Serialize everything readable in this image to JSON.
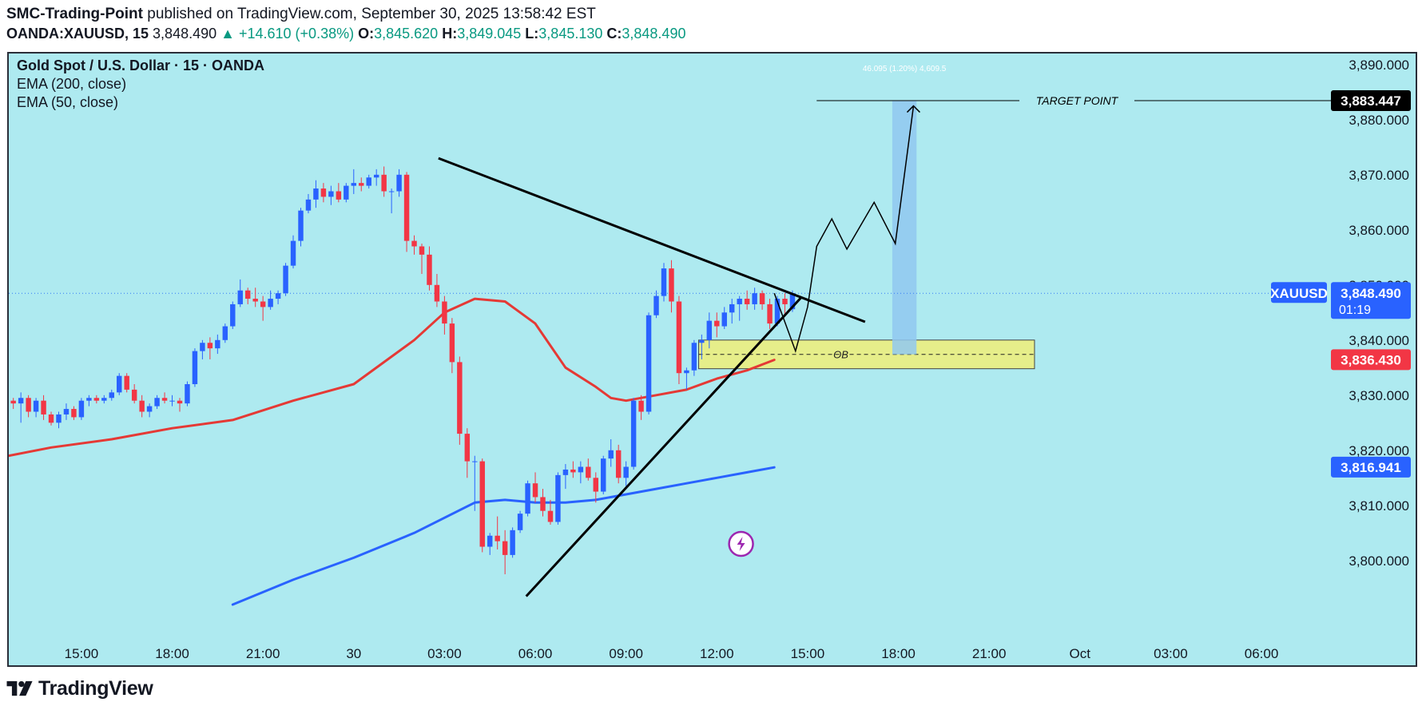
{
  "header": {
    "publisher": "SMC-Trading-Point",
    "published_text": "published on TradingView.com, September 30, 2025 13:58:42 EST",
    "symbol": "OANDA:XAUUSD, 15",
    "last": "3,848.490",
    "change": "+14.610 (+0.38%)",
    "o_label": "O:",
    "o": "3,845.620",
    "h_label": "H:",
    "h": "3,849.045",
    "l_label": "L:",
    "l": "3,845.130",
    "c_label": "C:",
    "c": "3,848.490"
  },
  "legend": {
    "title": "Gold Spot / U.S. Dollar · 15 · OANDA",
    "ema200": "EMA (200, close)",
    "ema50": "EMA (50, close)"
  },
  "colors": {
    "background": "#aeeaf0",
    "up": "#2962ff",
    "down": "#f23645",
    "ema50": "#e53935",
    "ema200": "#2962ff",
    "ob_fill": "#e6ee8a",
    "target_box": "#90c8f0",
    "badge_price": "#2962ff",
    "badge_ema50": "#f23645",
    "badge_ema200": "#2962ff",
    "badge_target": "#000000"
  },
  "annotations": {
    "target_label": "TARGET POINT",
    "target_value": "3,883.447",
    "measure_text": "46.095 (1.20%) 4,609.5",
    "ob_label": "OB",
    "symbol_badge": "XAUUSD",
    "price_badge": "3,848.490",
    "countdown": "01:19",
    "ema50_badge": "3,836.430",
    "ema200_badge": "3,816.941",
    "lightning_icon": "lightning-icon"
  },
  "footer": {
    "brand": "TradingView"
  },
  "chart_data": {
    "type": "candlestick",
    "y_ticks": [
      "3,800.000",
      "3,810.000",
      "3,820.000",
      "3,830.000",
      "3,840.000",
      "3,850.000",
      "3,860.000",
      "3,870.000",
      "3,880.000",
      "3,890.000"
    ],
    "y_tick_values": [
      3800,
      3810,
      3820,
      3830,
      3840,
      3850,
      3860,
      3870,
      3880,
      3890
    ],
    "x_ticks": [
      "15:00",
      "18:00",
      "21:00",
      "30",
      "03:00",
      "06:00",
      "09:00",
      "12:00",
      "15:00",
      "18:00",
      "21:00",
      "Oct",
      "03:00",
      "06:00"
    ],
    "x_tick_hours": [
      15,
      18,
      21,
      24,
      27,
      30,
      33,
      36,
      39,
      42,
      45,
      48,
      51,
      54
    ],
    "ylim": [
      3792,
      3892
    ],
    "xlim": [
      12.6,
      55.9
    ],
    "candles_time_start": 12.75,
    "candle_interval_hours": 0.25,
    "candles": [
      [
        3829,
        3829.5,
        3827.5,
        3828.5
      ],
      [
        3828.5,
        3830.5,
        3825,
        3829.5
      ],
      [
        3829.5,
        3830,
        3826,
        3827
      ],
      [
        3827,
        3829.5,
        3826,
        3829
      ],
      [
        3829,
        3830,
        3825.5,
        3826.5
      ],
      [
        3826.5,
        3827,
        3824.5,
        3825
      ],
      [
        3825,
        3827,
        3824,
        3826.5
      ],
      [
        3826.5,
        3828.5,
        3825.5,
        3827.5
      ],
      [
        3827.5,
        3828,
        3825.5,
        3826
      ],
      [
        3826,
        3829.5,
        3825.5,
        3829
      ],
      [
        3829,
        3830,
        3828,
        3829.5
      ],
      [
        3829.5,
        3830,
        3828.5,
        3829
      ],
      [
        3829,
        3830,
        3828.5,
        3829.5
      ],
      [
        3829.5,
        3831,
        3829,
        3830.5
      ],
      [
        3830.5,
        3834,
        3830,
        3833.5
      ],
      [
        3833.5,
        3834,
        3830.5,
        3831
      ],
      [
        3831,
        3832,
        3828.5,
        3829
      ],
      [
        3829,
        3830,
        3826,
        3827
      ],
      [
        3827,
        3828.5,
        3826,
        3828
      ],
      [
        3828,
        3830,
        3827.5,
        3829.5
      ],
      [
        3829.5,
        3830.5,
        3828.5,
        3829
      ],
      [
        3829,
        3830,
        3828,
        3829
      ],
      [
        3829,
        3829.5,
        3827,
        3828.5
      ],
      [
        3828.5,
        3832.5,
        3828,
        3832
      ],
      [
        3832,
        3838.5,
        3831.5,
        3838
      ],
      [
        3838,
        3840,
        3836.5,
        3839.5
      ],
      [
        3839.5,
        3840.5,
        3836.5,
        3838.5
      ],
      [
        3838.5,
        3841,
        3837.5,
        3840
      ],
      [
        3840,
        3843,
        3839.5,
        3842.5
      ],
      [
        3842.5,
        3847,
        3842,
        3846.5
      ],
      [
        3846.5,
        3851,
        3846,
        3849
      ],
      [
        3849,
        3849.5,
        3846.5,
        3847.5
      ],
      [
        3847.5,
        3849.5,
        3846,
        3847
      ],
      [
        3847,
        3848,
        3843.5,
        3846
      ],
      [
        3846,
        3849,
        3845.5,
        3847.5
      ],
      [
        3847.5,
        3849,
        3846.5,
        3848.5
      ],
      [
        3848.5,
        3854,
        3848,
        3853.5
      ],
      [
        3853.5,
        3859,
        3853,
        3858
      ],
      [
        3858,
        3864,
        3857,
        3863.5
      ],
      [
        3863.5,
        3866.5,
        3863,
        3865.5
      ],
      [
        3865.5,
        3869,
        3864,
        3867.5
      ],
      [
        3867.5,
        3868.5,
        3865,
        3866
      ],
      [
        3866,
        3868,
        3864.5,
        3867
      ],
      [
        3867,
        3868.5,
        3865,
        3865.5
      ],
      [
        3865.5,
        3868.5,
        3865,
        3868
      ],
      [
        3868,
        3871,
        3866.5,
        3868.5
      ],
      [
        3868.5,
        3869.5,
        3867,
        3868
      ],
      [
        3868,
        3870,
        3867.5,
        3869.5
      ],
      [
        3869.5,
        3871,
        3868,
        3870
      ],
      [
        3870,
        3871.5,
        3866,
        3867
      ],
      [
        3867,
        3867.5,
        3863,
        3867
      ],
      [
        3867,
        3871,
        3866,
        3870
      ],
      [
        3870,
        3870.5,
        3856,
        3858
      ],
      [
        3858,
        3859,
        3855.5,
        3857
      ],
      [
        3857,
        3857.5,
        3852,
        3855.5
      ],
      [
        3855.5,
        3857,
        3849,
        3850
      ],
      [
        3850,
        3852,
        3846,
        3847
      ],
      [
        3847,
        3848,
        3841,
        3843
      ],
      [
        3843,
        3844,
        3834,
        3836
      ],
      [
        3836,
        3837,
        3821,
        3823
      ],
      [
        3823,
        3824,
        3815,
        3818
      ],
      [
        3818,
        3819,
        3809,
        3818
      ],
      [
        3818,
        3818.5,
        3801.5,
        3802.5
      ],
      [
        3802.5,
        3805,
        3801,
        3804.5
      ],
      [
        3804.5,
        3808,
        3802,
        3803.5
      ],
      [
        3803.5,
        3805.5,
        3797.5,
        3801
      ],
      [
        3801,
        3806,
        3800.5,
        3805.5
      ],
      [
        3805.5,
        3809,
        3805,
        3808.5
      ],
      [
        3808.5,
        3814.5,
        3808,
        3814
      ],
      [
        3814,
        3816,
        3810.5,
        3811.5
      ],
      [
        3811.5,
        3813,
        3808,
        3809
      ],
      [
        3809,
        3811,
        3806.5,
        3807
      ],
      [
        3807,
        3816,
        3806.5,
        3815.5
      ],
      [
        3815.5,
        3817.5,
        3813,
        3816.5
      ],
      [
        3816.5,
        3818,
        3815,
        3816
      ],
      [
        3816,
        3818,
        3814,
        3817
      ],
      [
        3817,
        3818.5,
        3814.5,
        3815
      ],
      [
        3815,
        3816,
        3810.5,
        3812.5
      ],
      [
        3812.5,
        3819,
        3812,
        3818.5
      ],
      [
        3818.5,
        3822,
        3817,
        3820
      ],
      [
        3820,
        3821,
        3814,
        3815
      ],
      [
        3815,
        3818,
        3813.5,
        3817
      ],
      [
        3817,
        3829.5,
        3816.5,
        3829
      ],
      [
        3829,
        3830,
        3825.5,
        3827
      ],
      [
        3827,
        3845,
        3826.5,
        3844.5
      ],
      [
        3844.5,
        3849,
        3844,
        3848
      ],
      [
        3848,
        3854,
        3847,
        3853
      ],
      [
        3853,
        3854.5,
        3845,
        3847
      ],
      [
        3847,
        3848,
        3832,
        3834
      ],
      [
        3834,
        3835,
        3831,
        3834.5
      ],
      [
        3834.5,
        3840,
        3833.5,
        3839.5
      ],
      [
        3839.5,
        3841,
        3836.5,
        3840
      ],
      [
        3840,
        3845,
        3838.5,
        3843.5
      ],
      [
        3843.5,
        3845,
        3840.5,
        3842.5
      ],
      [
        3842.5,
        3846,
        3842,
        3845
      ],
      [
        3845,
        3847.5,
        3843,
        3846.5
      ],
      [
        3846.5,
        3848,
        3843.5,
        3847.5
      ],
      [
        3847.5,
        3849,
        3845.5,
        3846.5
      ],
      [
        3846.5,
        3849.5,
        3845.5,
        3848.5
      ],
      [
        3848.5,
        3849,
        3845.5,
        3846.5
      ],
      [
        3846.5,
        3847.5,
        3842,
        3843
      ],
      [
        3843,
        3848,
        3842.5,
        3847.5
      ],
      [
        3847.5,
        3848.5,
        3844.5,
        3846.5
      ],
      [
        3845.6,
        3849.0,
        3845.1,
        3848.5
      ]
    ],
    "series": [
      {
        "name": "EMA (50, close)",
        "x": [
          12.6,
          14,
          16,
          18,
          20,
          22,
          24,
          25,
          26,
          27,
          28,
          29,
          30,
          31,
          32,
          32.5,
          33,
          34,
          35,
          36,
          37,
          37.9
        ],
        "y": [
          3819,
          3820.5,
          3822,
          3824,
          3825.5,
          3829,
          3832,
          3836,
          3840,
          3845,
          3847.5,
          3847,
          3843,
          3835,
          3831.5,
          3829.5,
          3829,
          3830,
          3831,
          3833,
          3834.5,
          3836.4
        ]
      },
      {
        "name": "EMA (200, close)",
        "x": [
          20,
          22,
          24,
          26,
          28,
          29,
          30,
          31,
          32,
          33,
          34,
          35,
          36,
          37,
          37.9
        ],
        "y": [
          3792,
          3796.5,
          3800.5,
          3805,
          3810.5,
          3811,
          3810.5,
          3810.5,
          3811,
          3812,
          3813,
          3814,
          3815,
          3816,
          3816.9
        ]
      }
    ],
    "trendlines": [
      {
        "from": [
          26.8,
          3873.0
        ],
        "to": [
          40.9,
          3843.3
        ]
      },
      {
        "from": [
          29.7,
          3793.5
        ],
        "to": [
          38.8,
          3847.8
        ]
      }
    ],
    "projection_path": [
      [
        37.9,
        3848.5
      ],
      [
        38.6,
        3838
      ],
      [
        39.0,
        3846
      ],
      [
        39.3,
        3857
      ],
      [
        39.8,
        3862
      ],
      [
        40.3,
        3856.5
      ],
      [
        41.2,
        3865
      ],
      [
        41.9,
        3857.5
      ],
      [
        42.5,
        3882.5
      ]
    ],
    "target_price": 3883.447,
    "target_from_hour": 39.3,
    "order_block": {
      "x_start": 35.4,
      "x_end": 46.5,
      "y_low": 3834.8,
      "y_high": 3840.0,
      "mid": 3837.4
    },
    "target_box": {
      "x_start": 41.8,
      "x_end": 42.6,
      "y_low": 3837.4,
      "y_high": 3883.4
    },
    "last_price": 3848.49,
    "ema50_last": 3836.43,
    "ema200_last": 3816.941
  }
}
